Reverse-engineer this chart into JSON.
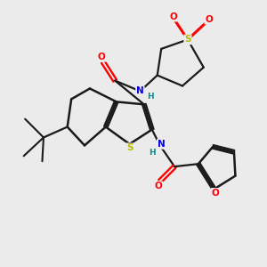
{
  "background_color": "#ebebeb",
  "bond_color": "#1a1a1a",
  "atom_colors": {
    "S": "#b8b800",
    "O": "#ff0000",
    "N": "#0000ee",
    "H": "#009090",
    "C": "#1a1a1a"
  },
  "figsize": [
    3.0,
    3.0
  ],
  "dpi": 100
}
